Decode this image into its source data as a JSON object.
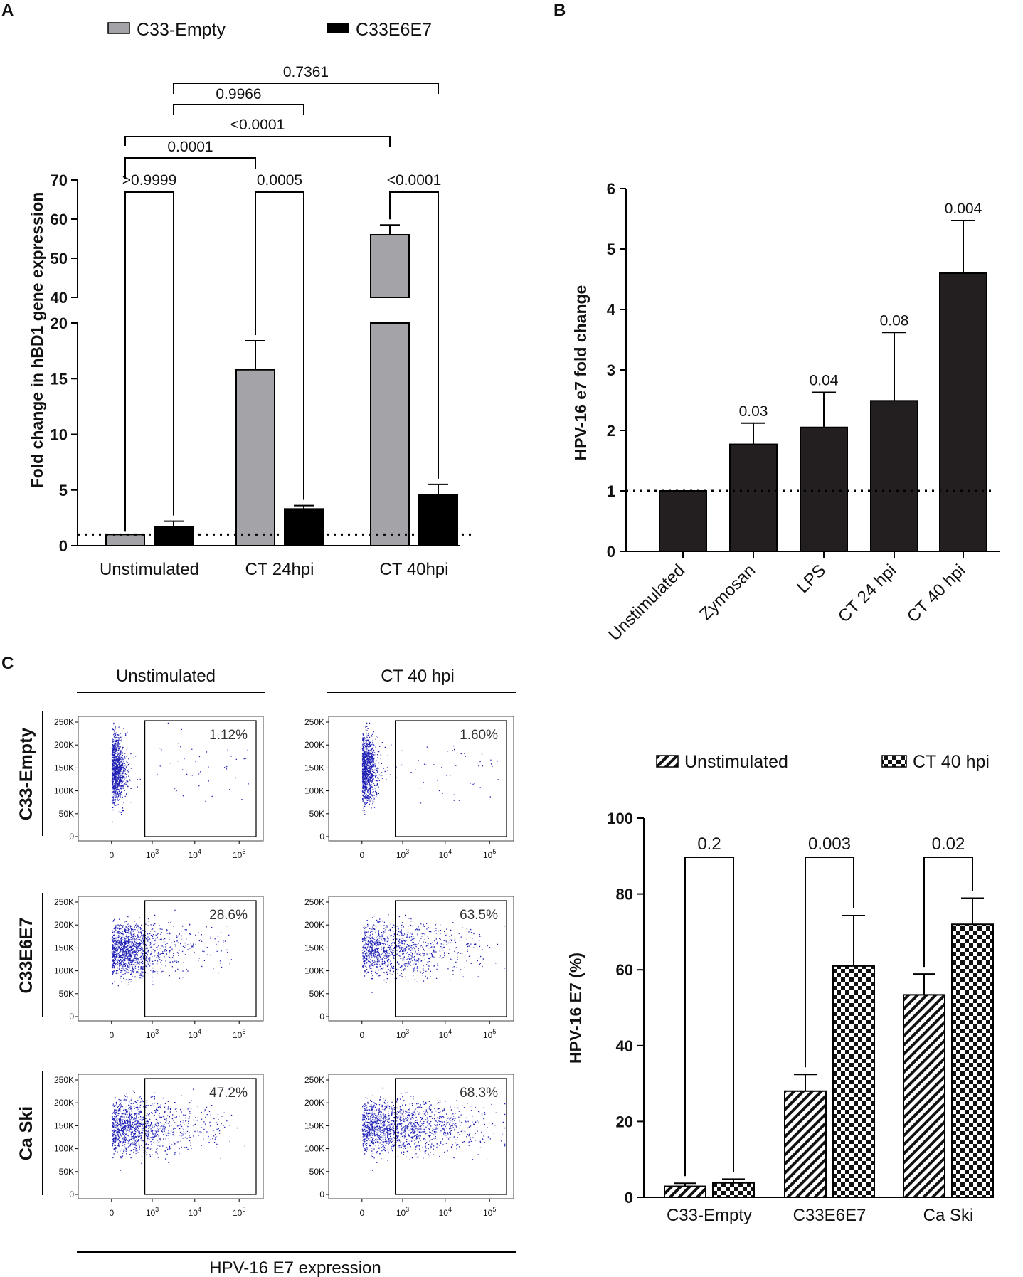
{
  "panels": {
    "a": "A",
    "b": "B",
    "c": "C"
  },
  "chart_data": [
    {
      "id": "A",
      "type": "bar",
      "title": "",
      "xlabel": "",
      "ylabel": "Fold change in hBD1 gene expression",
      "categories": [
        "Unstimulated",
        "CT 24hpi",
        "CT 40hpi"
      ],
      "series": [
        {
          "name": "C33-Empty",
          "color": "#a3a3a8",
          "values": [
            1.0,
            15.8,
            56.0
          ],
          "errors": [
            0.0,
            2.6,
            2.5
          ]
        },
        {
          "name": "C33E6E7",
          "color": "#000000",
          "values": [
            1.7,
            3.3,
            4.6
          ],
          "errors": [
            0.5,
            0.3,
            0.9
          ]
        }
      ],
      "ylim_lower": [
        0,
        20
      ],
      "ylim_upper": [
        40,
        70
      ],
      "yticks_lower": [
        "0",
        "5",
        "10",
        "15",
        "20"
      ],
      "yticks_upper": [
        "40",
        "50",
        "60",
        "70"
      ],
      "reference_line": 1,
      "comparisons": [
        {
          "label": ">0.9999",
          "from": "Unstimulated/C33-Empty",
          "to": "Unstimulated/C33E6E7"
        },
        {
          "label": "0.0005",
          "from": "CT 24hpi/C33-Empty",
          "to": "CT 24hpi/C33E6E7"
        },
        {
          "label": "<0.0001",
          "from": "CT 40hpi/C33-Empty",
          "to": "CT 40hpi/C33E6E7"
        },
        {
          "label": "0.0001",
          "from": "Unstimulated/C33-Empty",
          "to": "CT 24hpi/C33-Empty"
        },
        {
          "label": "<0.0001",
          "from": "Unstimulated/C33-Empty",
          "to": "CT 40hpi/C33-Empty"
        },
        {
          "label": "0.9966",
          "from": "Unstimulated/C33E6E7",
          "to": "CT 24hpi/C33E6E7"
        },
        {
          "label": "0.7361",
          "from": "Unstimulated/C33E6E7",
          "to": "CT 40hpi/C33E6E7"
        }
      ]
    },
    {
      "id": "B",
      "type": "bar",
      "title": "",
      "xlabel": "",
      "ylabel": "HPV-16 e7 fold change",
      "categories": [
        "Unstimulated",
        "Zymosan",
        "LPS",
        "CT 24 hpi",
        "CT 40 hpi"
      ],
      "values": [
        1.0,
        1.77,
        2.05,
        2.49,
        4.6
      ],
      "errors": [
        0.0,
        0.35,
        0.58,
        1.13,
        0.87
      ],
      "annotations": [
        "",
        "0.03",
        "0.04",
        "0.08",
        "0.004"
      ],
      "ylim": [
        0,
        6
      ],
      "yticks": [
        "0",
        "1",
        "2",
        "3",
        "4",
        "5",
        "6"
      ],
      "reference_line": 1,
      "color": "#231f20"
    },
    {
      "id": "C-bar",
      "type": "bar",
      "title": "",
      "xlabel": "",
      "ylabel": "HPV-16 E7 (%)",
      "categories": [
        "C33-Empty",
        "C33E6E7",
        "Ca Ski"
      ],
      "series": [
        {
          "name": "Unstimulated",
          "pattern": "hatch",
          "values": [
            2.9,
            28.0,
            53.4
          ],
          "errors": [
            0.8,
            4.4,
            5.5
          ]
        },
        {
          "name": "CT 40 hpi",
          "pattern": "checker",
          "values": [
            3.8,
            61.0,
            72.0
          ],
          "errors": [
            1.0,
            13.3,
            6.9
          ]
        }
      ],
      "ylim": [
        0,
        100
      ],
      "yticks": [
        "0",
        "20",
        "40",
        "60",
        "80",
        "100"
      ],
      "comparisons": [
        "0.2",
        "0.003",
        "0.02"
      ]
    }
  ],
  "flow": {
    "columns": [
      "Unstimulated",
      "CT 40 hpi"
    ],
    "rows": [
      "C33-Empty",
      "C33E6E7",
      "Ca Ski"
    ],
    "percentages": [
      [
        "1.12%",
        "1.60%"
      ],
      [
        "28.6%",
        "63.5%"
      ],
      [
        "47.2%",
        "68.3%"
      ]
    ],
    "spread": [
      [
        0.05,
        0.06
      ],
      [
        0.35,
        0.65
      ],
      [
        0.5,
        0.7
      ]
    ],
    "yticks": [
      "250K",
      "200K",
      "150K",
      "100K",
      "50K",
      "0"
    ],
    "xticks": [
      "0",
      "10",
      "10",
      "10"
    ],
    "xtick_exps": [
      "",
      "3",
      "4",
      "5"
    ],
    "xlabel": "HPV-16 E7 expression",
    "dot_color": "#1f1fb4"
  }
}
